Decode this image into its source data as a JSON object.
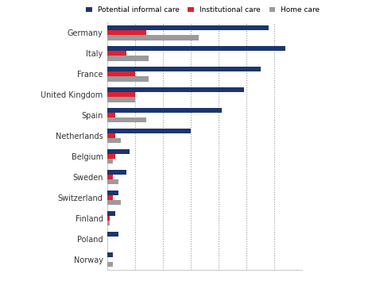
{
  "chart_data": {
    "type": "bar",
    "orientation": "horizontal",
    "categories": [
      "Germany",
      "Italy",
      "France",
      "United Kingdom",
      "Spain",
      "Netherlands",
      "Belgium",
      "Sweden",
      "Switzerland",
      "Finland",
      "Poland",
      "Norway"
    ],
    "series": [
      {
        "name": "Potential informal care",
        "color": "#1b3570",
        "values": [
          5.8,
          6.4,
          5.5,
          4.9,
          4.1,
          3.0,
          0.8,
          0.7,
          0.4,
          0.3,
          0.4,
          0.2
        ]
      },
      {
        "name": "Institutional care",
        "color": "#e3202f",
        "values": [
          1.4,
          0.7,
          1.0,
          1.0,
          0.3,
          0.3,
          0.3,
          0.2,
          0.2,
          0.1,
          0,
          0
        ]
      },
      {
        "name": "Home care",
        "color": "#9b9b9b",
        "values": [
          3.3,
          1.5,
          1.5,
          1.0,
          1.4,
          0.5,
          0.2,
          0.4,
          0.5,
          0.1,
          0,
          0.2
        ]
      }
    ],
    "xlim": [
      0,
      7
    ],
    "xticks": [
      0,
      1,
      2,
      3,
      4,
      5,
      6,
      7
    ],
    "grid": true,
    "legend": "upper center",
    "tick_labels": "y"
  }
}
